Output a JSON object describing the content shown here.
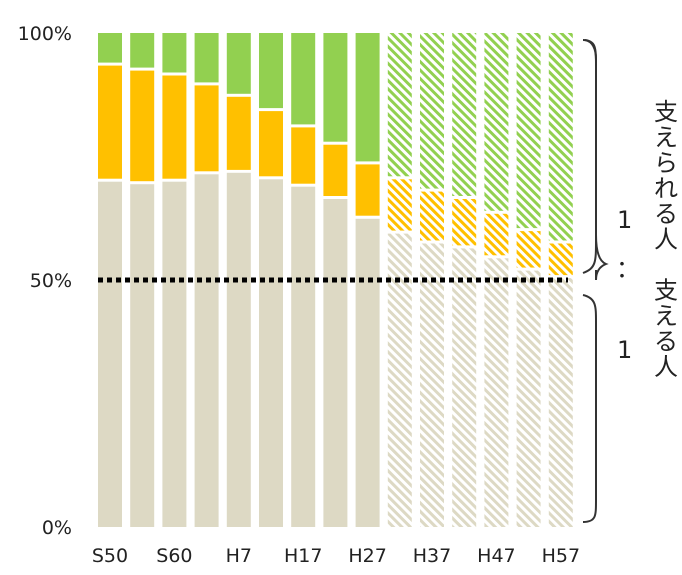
{
  "chart_data": {
    "type": "bar",
    "stacked": true,
    "y_unit": "%",
    "ylim": [
      0,
      100
    ],
    "y_ticks": [
      "0%",
      "50%",
      "100%"
    ],
    "x_tick_labels": [
      "S50",
      "S60",
      "H7",
      "H17",
      "H27",
      "H37",
      "H47",
      "H57"
    ],
    "projection_starts_at_bar": 9,
    "series": [
      {
        "color": "#DDD9C4",
        "values": [
          70.5,
          70,
          70.5,
          72,
          72.3,
          71,
          69.5,
          67,
          63,
          60,
          58,
          57,
          55,
          52.5,
          51
        ]
      },
      {
        "color": "#FFC000",
        "values": [
          23.5,
          23,
          21.5,
          18,
          15.4,
          13.8,
          12,
          11,
          11,
          11,
          10.5,
          10,
          9,
          8,
          7
        ]
      },
      {
        "color": "#92D050",
        "values": [
          6,
          7,
          8,
          10,
          12.3,
          15.2,
          18.5,
          22,
          26,
          29,
          31.5,
          33,
          36,
          39.5,
          42
        ]
      }
    ],
    "reference_line": {
      "value": 50,
      "style": "dotted"
    }
  },
  "annotations": {
    "upper_number": "1",
    "lower_number": "1",
    "vertical_label": "支えられる人：支える人"
  },
  "colors": {
    "background": "#FFFFFF",
    "reference_line": "#000000",
    "brace": "#333333",
    "text": "#222222"
  }
}
